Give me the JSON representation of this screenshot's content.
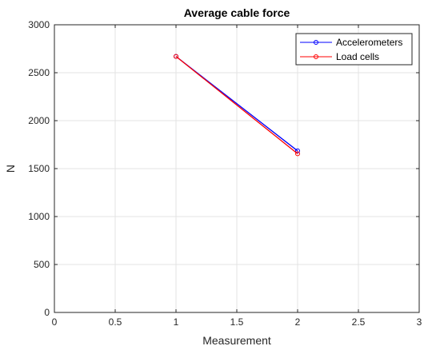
{
  "chart_data": {
    "type": "line",
    "title": "Average cable force",
    "xlabel": "Measurement",
    "ylabel": "N",
    "xlim": [
      0,
      3
    ],
    "ylim": [
      0,
      3000
    ],
    "xticks": [
      0,
      0.5,
      1,
      1.5,
      2,
      2.5,
      3
    ],
    "yticks": [
      0,
      500,
      1000,
      1500,
      2000,
      2500,
      3000
    ],
    "grid": true,
    "legend_position": "top-right",
    "series": [
      {
        "name": "Accelerometers",
        "x": [
          1,
          2
        ],
        "y": [
          2670,
          1685
        ],
        "color": "#0000ff",
        "marker": "circle"
      },
      {
        "name": "Load cells",
        "x": [
          1,
          2
        ],
        "y": [
          2670,
          1655
        ],
        "color": "#ff0000",
        "marker": "circle"
      }
    ]
  }
}
